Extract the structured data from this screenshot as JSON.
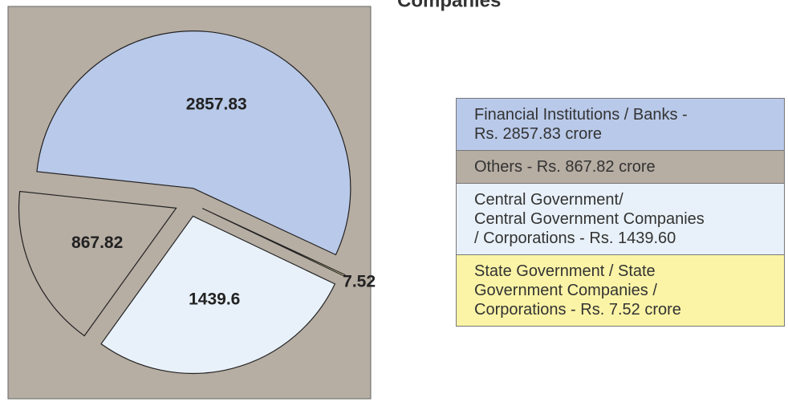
{
  "chart_data": {
    "type": "pie",
    "title": "Companies",
    "categories": [
      "Financial Institutions / Banks -\nRs. 2857.83 crore",
      "Others - Rs. 867.82 crore",
      "Central Government/\nCentral Government Companies\n/ Corporations - Rs. 1439.60",
      "State Government / State\nGovernment Companies /\nCorporations - Rs. 7.52 crore"
    ],
    "values": [
      2857.83,
      867.82,
      1439.6,
      7.52
    ],
    "colors": [
      "#b9c9e9",
      "#b6ada3",
      "#e8f1f9",
      "#fbf4a6"
    ],
    "background": "#b6ada3"
  }
}
